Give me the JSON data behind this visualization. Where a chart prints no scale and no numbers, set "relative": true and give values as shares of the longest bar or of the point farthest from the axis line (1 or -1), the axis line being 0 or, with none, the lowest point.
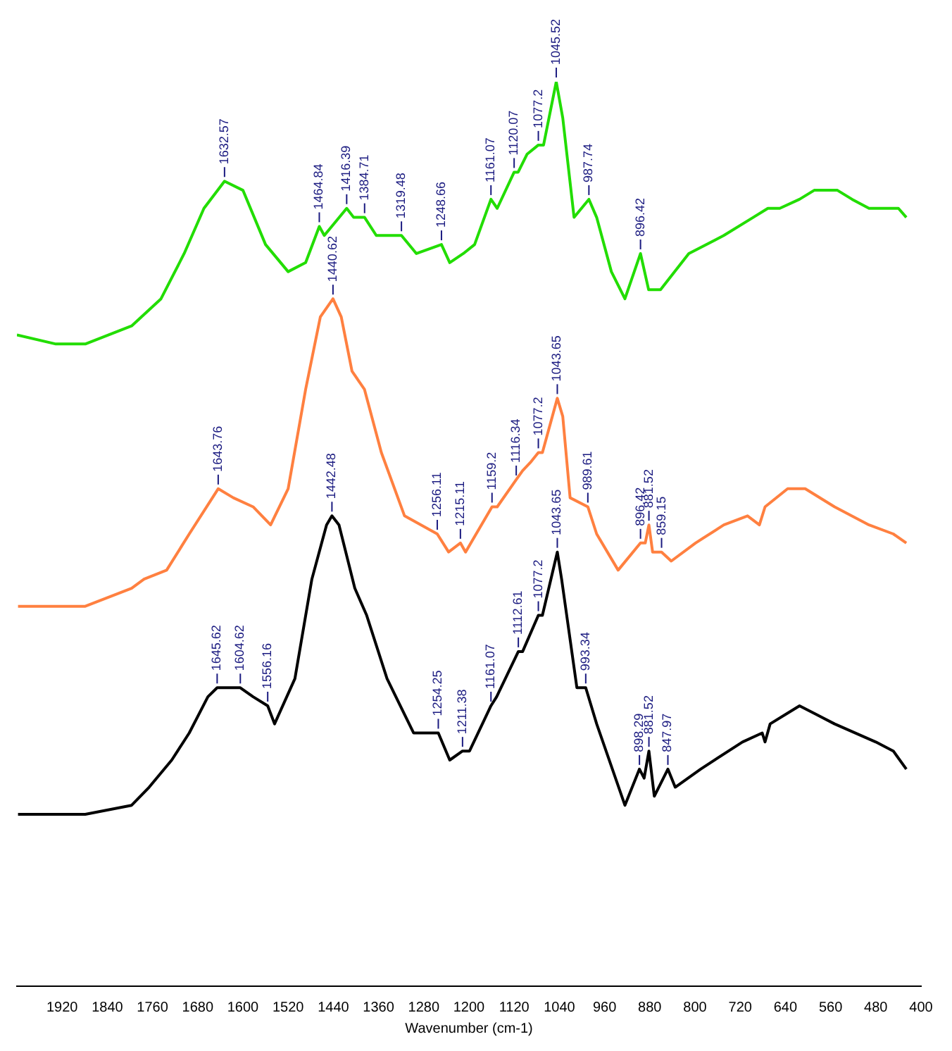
{
  "chart_data": {
    "type": "line",
    "relative": true,
    "xlabel": "Wavenumber (cm-1)",
    "xlim": [
      2000,
      400
    ],
    "xticks": [
      1920,
      1840,
      1760,
      1680,
      1600,
      1520,
      1440,
      1360,
      1280,
      1200,
      1120,
      1040,
      960,
      880,
      800,
      720,
      640,
      560,
      480,
      400
    ],
    "grid": false,
    "legend": false,
    "marker": "none",
    "line_style": "solid",
    "series": [
      {
        "color": "#22dd00",
        "x": [
          2000,
          1931,
          1879,
          1797,
          1745,
          1704,
          1669,
          1632.57,
          1600,
          1560,
          1520,
          1489,
          1464.84,
          1456,
          1416.39,
          1404,
          1384.71,
          1364,
          1319.48,
          1293,
          1248.66,
          1234,
          1210,
          1190,
          1161.07,
          1150,
          1120.07,
          1113,
          1097,
          1077.2,
          1068,
          1045.52,
          1034,
          1014,
          987.74,
          974,
          948,
          924,
          896.42,
          882,
          861,
          811,
          749,
          697,
          671,
          650,
          615,
          589,
          548,
          522,
          492,
          461,
          440,
          426
        ],
        "values": [
          0.72,
          0.71,
          0.71,
          0.73,
          0.76,
          0.81,
          0.86,
          0.89,
          0.88,
          0.82,
          0.79,
          0.8,
          0.84,
          0.83,
          0.86,
          0.85,
          0.85,
          0.83,
          0.83,
          0.81,
          0.82,
          0.8,
          0.81,
          0.82,
          0.87,
          0.86,
          0.9,
          0.9,
          0.92,
          0.93,
          0.93,
          1,
          0.96,
          0.85,
          0.87,
          0.85,
          0.79,
          0.76,
          0.81,
          0.77,
          0.77,
          0.81,
          0.83,
          0.85,
          0.86,
          0.86,
          0.87,
          0.88,
          0.88,
          0.87,
          0.86,
          0.86,
          0.86,
          0.85
        ]
      },
      {
        "color": "#ff8040",
        "x": [
          1998,
          1879,
          1797,
          1775,
          1735,
          1695,
          1643.76,
          1617,
          1582,
          1551,
          1520,
          1489,
          1463,
          1440.62,
          1426,
          1407,
          1385,
          1355,
          1314,
          1256.11,
          1236,
          1215.11,
          1206,
          1159.2,
          1150,
          1116.34,
          1105,
          1090,
          1077.2,
          1070,
          1043.65,
          1034,
          1021,
          989.61,
          974,
          936,
          896.42,
          888,
          881.52,
          875,
          859.15,
          842,
          799,
          749,
          707,
          686,
          676,
          636,
          605,
          553,
          492,
          449,
          426
        ],
        "values": [
          0.42,
          0.42,
          0.44,
          0.45,
          0.46,
          0.5,
          0.55,
          0.54,
          0.53,
          0.51,
          0.55,
          0.66,
          0.74,
          0.76,
          0.74,
          0.68,
          0.66,
          0.59,
          0.52,
          0.5,
          0.48,
          0.49,
          0.48,
          0.53,
          0.53,
          0.56,
          0.57,
          0.58,
          0.59,
          0.59,
          0.65,
          0.63,
          0.54,
          0.53,
          0.5,
          0.46,
          0.49,
          0.49,
          0.51,
          0.48,
          0.48,
          0.47,
          0.49,
          0.51,
          0.52,
          0.51,
          0.53,
          0.55,
          0.55,
          0.53,
          0.51,
          0.5,
          0.49
        ]
      },
      {
        "color": "#000000",
        "x": [
          1998,
          1879,
          1797,
          1766,
          1726,
          1695,
          1662,
          1645.62,
          1626,
          1604.62,
          1582,
          1556.16,
          1544,
          1508,
          1478,
          1452,
          1442.48,
          1430,
          1402,
          1381,
          1345,
          1298,
          1254.25,
          1234,
          1211.38,
          1199,
          1161.07,
          1151,
          1112.61,
          1105,
          1077.2,
          1070,
          1043.65,
          1036,
          1009,
          993.34,
          974,
          924,
          898.29,
          890,
          881.52,
          872,
          847.97,
          835,
          790,
          716,
          681,
          676,
          667,
          615,
          584,
          553,
          480,
          449,
          426
        ],
        "values": [
          0.19,
          0.19,
          0.2,
          0.22,
          0.25,
          0.28,
          0.32,
          0.33,
          0.33,
          0.33,
          0.32,
          0.31,
          0.29,
          0.34,
          0.45,
          0.51,
          0.52,
          0.51,
          0.44,
          0.41,
          0.34,
          0.28,
          0.28,
          0.25,
          0.26,
          0.26,
          0.31,
          0.32,
          0.37,
          0.37,
          0.41,
          0.41,
          0.48,
          0.45,
          0.33,
          0.33,
          0.29,
          0.2,
          0.24,
          0.23,
          0.26,
          0.21,
          0.24,
          0.22,
          0.24,
          0.27,
          0.28,
          0.27,
          0.29,
          0.31,
          0.3,
          0.29,
          0.27,
          0.26,
          0.24
        ]
      }
    ],
    "annotations": [
      {
        "text": "1632.57",
        "x": 1632.57,
        "y": 0.89
      },
      {
        "text": "1464.84",
        "x": 1464.84,
        "y": 0.84
      },
      {
        "text": "1416.39",
        "x": 1416.39,
        "y": 0.86
      },
      {
        "text": "1384.71",
        "x": 1384.71,
        "y": 0.85
      },
      {
        "text": "1319.48",
        "x": 1319.48,
        "y": 0.83
      },
      {
        "text": "1248.66",
        "x": 1248.66,
        "y": 0.82
      },
      {
        "text": "1161.07",
        "x": 1161.07,
        "y": 0.87
      },
      {
        "text": "1120.07",
        "x": 1120.07,
        "y": 0.9
      },
      {
        "text": "1077.2",
        "x": 1077.2,
        "y": 0.93
      },
      {
        "text": "1045.52",
        "x": 1045.52,
        "y": 1
      },
      {
        "text": "987.74",
        "x": 987.74,
        "y": 0.87
      },
      {
        "text": "896.42",
        "x": 896.42,
        "y": 0.81
      },
      {
        "text": "1643.76",
        "x": 1643.76,
        "y": 0.55
      },
      {
        "text": "1440.62",
        "x": 1440.62,
        "y": 0.76
      },
      {
        "text": "1256.11",
        "x": 1256.11,
        "y": 0.5
      },
      {
        "text": "1215.11",
        "x": 1215.11,
        "y": 0.49
      },
      {
        "text": "1159.2",
        "x": 1159.2,
        "y": 0.53
      },
      {
        "text": "1116.34",
        "x": 1116.34,
        "y": 0.56
      },
      {
        "text": "1077.2",
        "x": 1077.2,
        "y": 0.59
      },
      {
        "text": "1043.65",
        "x": 1043.65,
        "y": 0.65
      },
      {
        "text": "989.61",
        "x": 989.61,
        "y": 0.53
      },
      {
        "text": "896.42",
        "x": 896.42,
        "y": 0.49
      },
      {
        "text": "881.52",
        "x": 881.52,
        "y": 0.51
      },
      {
        "text": "859.15",
        "x": 859.15,
        "y": 0.48
      },
      {
        "text": "1645.62",
        "x": 1645.62,
        "y": 0.33
      },
      {
        "text": "1604.62",
        "x": 1604.62,
        "y": 0.33
      },
      {
        "text": "1556.16",
        "x": 1556.16,
        "y": 0.31
      },
      {
        "text": "1442.48",
        "x": 1442.48,
        "y": 0.52
      },
      {
        "text": "1254.25",
        "x": 1254.25,
        "y": 0.28
      },
      {
        "text": "1211.38",
        "x": 1211.38,
        "y": 0.26
      },
      {
        "text": "1161.07",
        "x": 1161.07,
        "y": 0.31
      },
      {
        "text": "1112.61",
        "x": 1112.61,
        "y": 0.37
      },
      {
        "text": "1077.2",
        "x": 1077.2,
        "y": 0.41
      },
      {
        "text": "1043.65",
        "x": 1043.65,
        "y": 0.48
      },
      {
        "text": "993.34",
        "x": 993.34,
        "y": 0.33
      },
      {
        "text": "898.29",
        "x": 898.29,
        "y": 0.24
      },
      {
        "text": "881.52",
        "x": 881.52,
        "y": 0.26
      },
      {
        "text": "847.97",
        "x": 847.97,
        "y": 0.24
      }
    ]
  }
}
